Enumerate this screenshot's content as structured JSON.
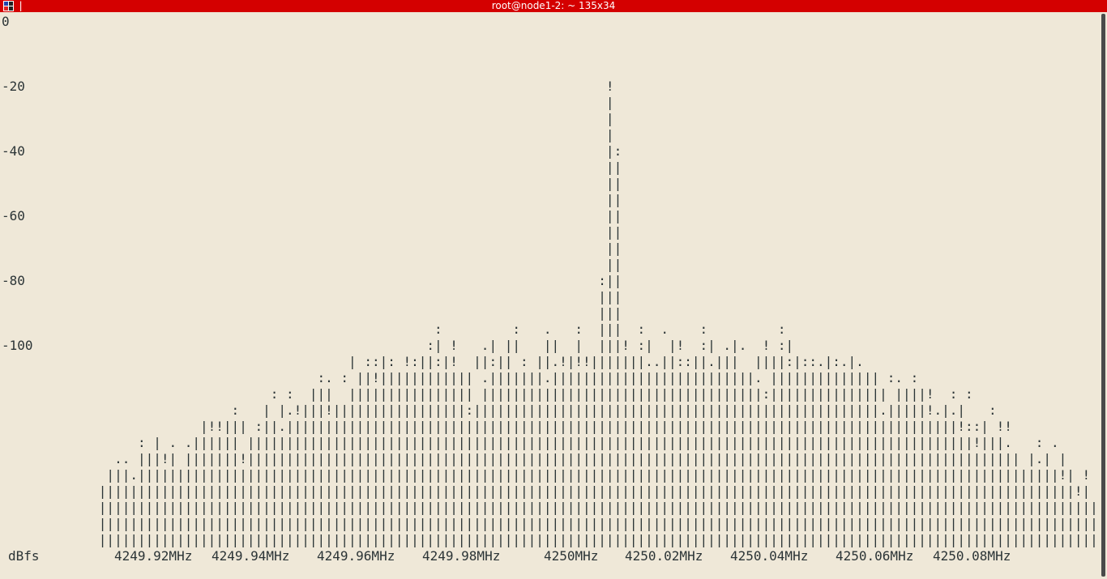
{
  "window": {
    "title": "root@node1-2: ~ 135x34",
    "title_pipe": "|",
    "icon": "terminal-icon"
  },
  "chart_data": {
    "type": "bar",
    "ylabel": "dBfs",
    "ylim": [
      -100,
      0
    ],
    "y_ticks": [
      "0",
      "-20",
      "-40",
      "-60",
      "-80",
      "-100"
    ],
    "x_ticks": [
      "4249.92MHz",
      "4249.94MHz",
      "4249.96MHz",
      "4249.98MHz",
      "4250MHz",
      "4250.02MHz",
      "4250.04MHz",
      "4250.06MHz",
      "4250.08MHz"
    ],
    "rows": [
      "                                                                       !",
      "                                                                       |",
      "                                                                       |",
      "                                                                       |",
      "                                                                       |:",
      "                                                                       ||",
      "                                                                       ||",
      "                                                                       ||",
      "                                                                       ||",
      "                                                                       ||",
      "                                                                       ||",
      "                                                                       ||",
      "                                                                      :||",
      "                                                                      |||",
      "                                                                      |||",
      "                                                 :         :   .   :  |||  :  .    :         :",
      "                                                :| !   .| ||   ||  |  |||! :|  |!  :| .|.  ! :|",
      "                                      | ::|: !:||:|!  ||:|| : ||.!|!!|||||||..||::||.|||  ||||:|::.|:.|.",
      "                                  :. : ||!|||||||||||| .|||||||.||||||||||||||||||||||||||. |||||||||||||| :. :",
      "                            : :  |||  |||||||||||||||| ||||||||||||||||||||||||||||||||||||:||||||||||||||| ||||!  : :",
      "                       :   | |.!|||!|||||||||||||||||:||||||||||||||||||||||||||||||||||||||||||||||||||||.|||||!.|.|   :",
      "                   |!!||| :||.||||||||||||||||||||||||||||||||||||||||||||||||||||||||||||||||||||||||||||||||||||||!::| !!",
      "           : | . .|||||| |||||||||||||||||||||||||||||||||||||||||||||||||||||||||||||||||||||||||||||||||||||||||||||!|||.   : .",
      "        .. |||!| |||||||!||||||||||||||||||||||||||||||||||||||||||||||||||||||||||||||||||||||||||||||||||||||||||||||||||| |.| |",
      "       |||.||||||||||||||||||||||||||||||||||||||||||||||||||||||||||||||||||||||||||||||||||||||||||||||||||||||||||||||||||||||!| !",
      "      |||||||||||||||||||||||||||||||||||||||||||||||||||||||||||||||||||||||||||||||||||||||||||||||||||||||||||||||||||||||||||||!|",
      "      ||||||||||||||||||||||||||||||||||||||||||||||||||||||||||||||||||||||||||||||||||||||||||||||||||||||||||||||||||||||||||||||||",
      "      ||||||||||||||||||||||||||||||||||||||||||||||||||||||||||||||||||||||||||||||||||||||||||||||||||||||||||||||||||||||||||||||||",
      "      ||||||||||||||||||||||||||||||||||||||||||||||||||||||||||||||||||||||||||||||||||||||||||||||||||||||||||||||||||||||||||||||||"
    ]
  },
  "colors": {
    "titlebar": "#d40000",
    "background": "#efe8d8",
    "text": "#2b3436"
  }
}
